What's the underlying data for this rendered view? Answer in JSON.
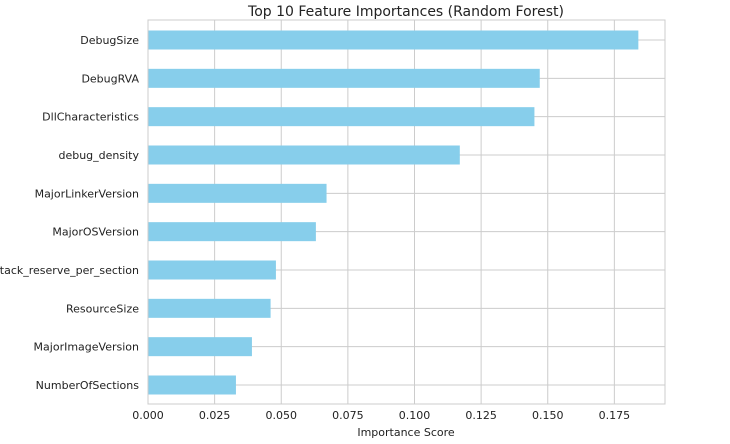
{
  "chart_data": {
    "type": "bar",
    "orientation": "horizontal",
    "title": "Top 10 Feature Importances (Random Forest)",
    "xlabel": "Importance Score",
    "ylabel": "",
    "categories": [
      "DebugSize",
      "DebugRVA",
      "DllCharacteristics",
      "debug_density",
      "MajorLinkerVersion",
      "MajorOSVersion",
      "stack_reserve_per_section",
      "ResourceSize",
      "MajorImageVersion",
      "NumberOfSections"
    ],
    "values": [
      0.184,
      0.147,
      0.145,
      0.117,
      0.067,
      0.063,
      0.048,
      0.046,
      0.039,
      0.033
    ],
    "xlim": [
      0,
      0.194
    ],
    "xticks": [
      0.0,
      0.025,
      0.05,
      0.075,
      0.1,
      0.125,
      0.15,
      0.175
    ],
    "xtick_labels": [
      "0.000",
      "0.025",
      "0.050",
      "0.075",
      "0.100",
      "0.125",
      "0.150",
      "0.175"
    ],
    "grid": true,
    "legend": "none",
    "bar_color": "#87CEEB",
    "grid_color": "#cccccc",
    "spine_color": "#cccccc"
  }
}
